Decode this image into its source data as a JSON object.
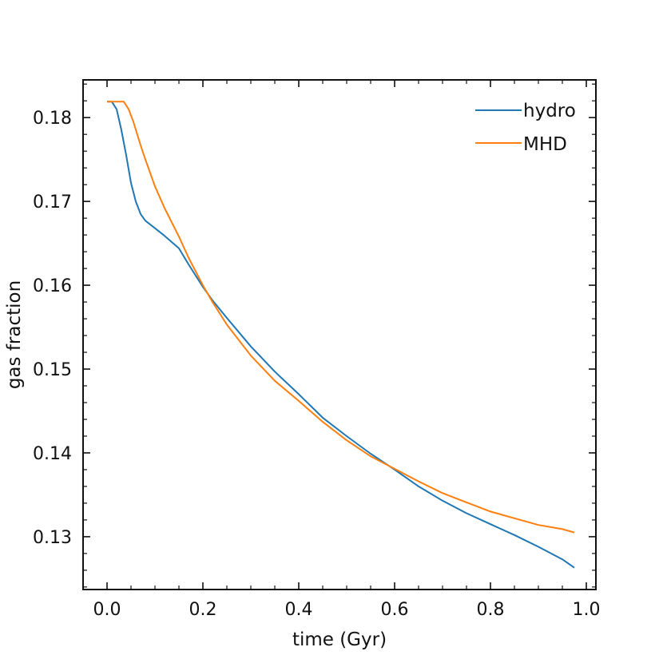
{
  "chart_data": {
    "type": "line",
    "xlabel": "time (Gyr)",
    "ylabel": "gas fraction",
    "xlim": [
      -0.05,
      1.02
    ],
    "ylim": [
      0.1237,
      0.1845
    ],
    "xticks": [
      0.0,
      0.2,
      0.4,
      0.6,
      0.8,
      1.0
    ],
    "xtick_labels": [
      "0.0",
      "0.2",
      "0.4",
      "0.6",
      "0.8",
      "1.0"
    ],
    "yticks": [
      0.13,
      0.14,
      0.15,
      0.16,
      0.17,
      0.18
    ],
    "ytick_labels": [
      "0.13",
      "0.14",
      "0.15",
      "0.16",
      "0.17",
      "0.18"
    ],
    "grid": false,
    "legend_position": "top-right",
    "series": [
      {
        "name": "hydro",
        "color": "#1f77b4",
        "x": [
          0.0,
          0.01,
          0.02,
          0.03,
          0.04,
          0.05,
          0.06,
          0.07,
          0.08,
          0.1,
          0.12,
          0.15,
          0.17,
          0.2,
          0.22,
          0.25,
          0.3,
          0.35,
          0.4,
          0.45,
          0.5,
          0.55,
          0.6,
          0.65,
          0.7,
          0.75,
          0.8,
          0.85,
          0.9,
          0.95,
          0.975
        ],
        "y": [
          0.1819,
          0.1819,
          0.181,
          0.1785,
          0.1755,
          0.1722,
          0.17,
          0.1685,
          0.1677,
          0.1668,
          0.1659,
          0.1644,
          0.1625,
          0.1598,
          0.1582,
          0.1561,
          0.1527,
          0.1497,
          0.147,
          0.1442,
          0.142,
          0.1399,
          0.138,
          0.136,
          0.1343,
          0.1328,
          0.1315,
          0.1302,
          0.1288,
          0.1273,
          0.1263
        ]
      },
      {
        "name": "MHD",
        "color": "#ff7f0e",
        "x": [
          0.0,
          0.01,
          0.02,
          0.035,
          0.045,
          0.055,
          0.07,
          0.08,
          0.1,
          0.12,
          0.15,
          0.17,
          0.2,
          0.22,
          0.25,
          0.3,
          0.35,
          0.4,
          0.45,
          0.5,
          0.55,
          0.6,
          0.65,
          0.7,
          0.75,
          0.8,
          0.85,
          0.9,
          0.95,
          0.975
        ],
        "y": [
          0.1819,
          0.1819,
          0.1819,
          0.1819,
          0.181,
          0.1795,
          0.1767,
          0.175,
          0.1718,
          0.1692,
          0.1658,
          0.1633,
          0.16,
          0.158,
          0.1553,
          0.1516,
          0.1486,
          0.1462,
          0.1437,
          0.1415,
          0.1396,
          0.1381,
          0.1366,
          0.1352,
          0.1341,
          0.133,
          0.1322,
          0.1314,
          0.1309,
          0.1305
        ]
      }
    ]
  }
}
